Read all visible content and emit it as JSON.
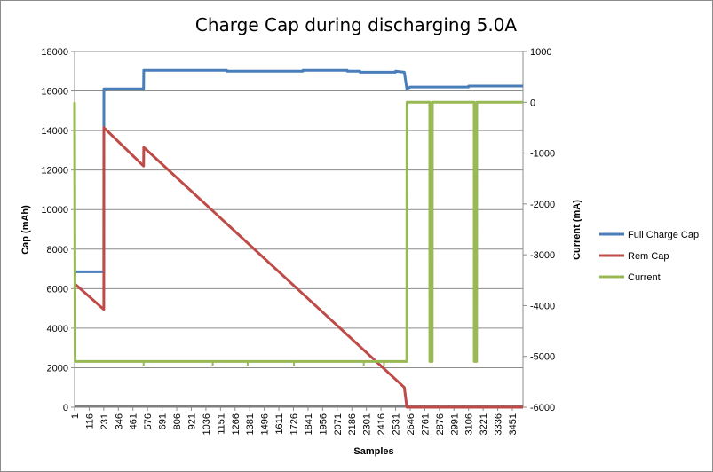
{
  "chart_data": {
    "type": "line",
    "title": "Charge Cap during discharging 5.0A",
    "xlabel": "Samples",
    "ylabel": "Cap (mAh)",
    "y2label": "Current (mA)",
    "ylim": [
      0,
      18000
    ],
    "y2lim": [
      -6000,
      1000
    ],
    "yticks": [
      0,
      2000,
      4000,
      6000,
      8000,
      10000,
      12000,
      14000,
      16000,
      18000
    ],
    "y2ticks": [
      -6000,
      -5000,
      -4000,
      -3000,
      -2000,
      -1000,
      0,
      1000
    ],
    "ytick_labels": [
      "0",
      "2000",
      "4000",
      "6000",
      "8000",
      "10000",
      "12000",
      "14000",
      "16000",
      "18000"
    ],
    "y2tick_labels": [
      "-6000",
      "-5000",
      "-4000",
      "-3000",
      "-2000",
      "-1000",
      "0",
      "1000"
    ],
    "xrange": [
      1,
      3535
    ],
    "xtick_step": 115,
    "xtick_labels": [
      "1",
      "116",
      "231",
      "346",
      "461",
      "576",
      "691",
      "806",
      "921",
      "1036",
      "1151",
      "1266",
      "1381",
      "1496",
      "1611",
      "1726",
      "1841",
      "1956",
      "2071",
      "2186",
      "2301",
      "2416",
      "2531",
      "2646",
      "2761",
      "2876",
      "2991",
      "3106",
      "3221",
      "3336",
      "3451"
    ],
    "grid": true,
    "legend_position": "right",
    "series": [
      {
        "name": "Full Charge Cap",
        "color": "#4a7ebb",
        "axis": "left",
        "points": [
          [
            1,
            6850
          ],
          [
            231,
            6850
          ],
          [
            232,
            16100
          ],
          [
            545,
            16100
          ],
          [
            546,
            17050
          ],
          [
            1200,
            17050
          ],
          [
            1201,
            17000
          ],
          [
            1800,
            17000
          ],
          [
            1801,
            17050
          ],
          [
            2150,
            17050
          ],
          [
            2151,
            17000
          ],
          [
            2250,
            17000
          ],
          [
            2251,
            16950
          ],
          [
            2530,
            16950
          ],
          [
            2531,
            17000
          ],
          [
            2600,
            16950
          ],
          [
            2620,
            16100
          ],
          [
            2646,
            16200
          ],
          [
            3106,
            16200
          ],
          [
            3107,
            16250
          ],
          [
            3535,
            16250
          ]
        ]
      },
      {
        "name": "Rem Cap",
        "color": "#be4b48",
        "axis": "left",
        "points": [
          [
            1,
            6250
          ],
          [
            231,
            4950
          ],
          [
            232,
            14150
          ],
          [
            545,
            12200
          ],
          [
            546,
            13150
          ],
          [
            2600,
            1000
          ],
          [
            2620,
            0
          ],
          [
            3535,
            0
          ]
        ]
      },
      {
        "name": "Current",
        "color": "#98b954",
        "axis": "right",
        "points": [
          [
            1,
            0
          ],
          [
            5,
            -5100
          ],
          [
            2620,
            -5100
          ],
          [
            2621,
            0
          ],
          [
            2800,
            0
          ],
          [
            2801,
            -5100
          ],
          [
            2820,
            -5100
          ],
          [
            2821,
            0
          ],
          [
            3150,
            0
          ],
          [
            3151,
            -5100
          ],
          [
            3170,
            -5100
          ],
          [
            3171,
            0
          ],
          [
            3535,
            0
          ]
        ],
        "spikes": [
          [
            545,
            -5180
          ],
          [
            1090,
            -5180
          ],
          [
            1365,
            -5180
          ],
          [
            1730,
            -5180
          ],
          [
            2280,
            -5180
          ],
          [
            2440,
            -5180
          ]
        ]
      }
    ]
  }
}
